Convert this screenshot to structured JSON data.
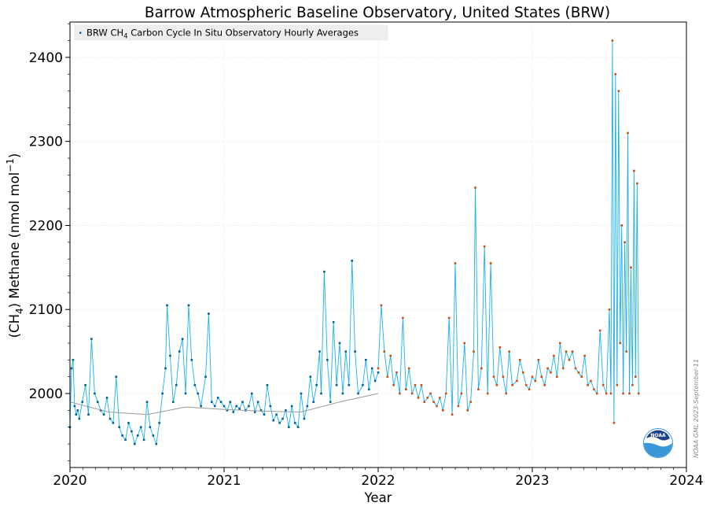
{
  "chart_data": {
    "type": "line",
    "title": "Barrow Atmospheric Baseline Observatory, United States (BRW)",
    "xlabel": "Year",
    "ylabel": "(CH4) Methane (nmol mol-1)",
    "ylabel_parts": {
      "open": "(CH",
      "sub": "4",
      "mid": ") Methane (nmol mol",
      "sup": "−1",
      "close": ")"
    },
    "xlim": [
      2020,
      2024
    ],
    "ylim": [
      1912,
      2442
    ],
    "x_ticks": [
      2020,
      2021,
      2022,
      2023,
      2024
    ],
    "x_tick_labels": [
      "2020",
      "2021",
      "2022",
      "2023",
      "2024"
    ],
    "y_ticks": [
      2000,
      2100,
      2200,
      2300,
      2400
    ],
    "y_tick_labels": [
      "2000",
      "2100",
      "2200",
      "2300",
      "2400"
    ],
    "grid": true,
    "legend_position": "top-left",
    "legend": {
      "label_prefix": "BRW CH",
      "label_sub": "4",
      "label_suffix": " Carbon Cycle In Situ Observatory Hourly Averages"
    },
    "credit": "NOAA GML 2023-September-11",
    "logo_text": "NOAA",
    "colors": {
      "line": "#1ab0ee",
      "final_points": "#00609a",
      "preliminary_points": "#c84f18",
      "trend": "#999999",
      "logo_blue": "#3a98d8"
    },
    "series": [
      {
        "name": "BRW CH4 Carbon Cycle In Situ Observatory Hourly Averages",
        "segment": "final",
        "x": [
          2020.0,
          2020.01,
          2020.02,
          2020.03,
          2020.04,
          2020.05,
          2020.06,
          2020.08,
          2020.1,
          2020.12,
          2020.14,
          2020.16,
          2020.18,
          2020.2,
          2020.22,
          2020.24,
          2020.26,
          2020.28,
          2020.3,
          2020.32,
          2020.34,
          2020.36,
          2020.38,
          2020.4,
          2020.42,
          2020.44,
          2020.46,
          2020.48,
          2020.5,
          2020.52,
          2020.54,
          2020.56,
          2020.58,
          2020.6,
          2020.62,
          2020.63,
          2020.65,
          2020.67,
          2020.69,
          2020.71,
          2020.73,
          2020.75,
          2020.77,
          2020.79,
          2020.81,
          2020.83,
          2020.85,
          2020.88,
          2020.9,
          2020.92,
          2020.94,
          2020.96,
          2020.98,
          2021.0,
          2021.02,
          2021.04,
          2021.06,
          2021.08,
          2021.1,
          2021.12,
          2021.14,
          2021.16,
          2021.18,
          2021.2,
          2021.22,
          2021.24,
          2021.26,
          2021.28,
          2021.3,
          2021.32,
          2021.34,
          2021.36,
          2021.38,
          2021.4,
          2021.42,
          2021.44,
          2021.46,
          2021.48,
          2021.5,
          2021.52,
          2021.54,
          2021.56,
          2021.58,
          2021.6,
          2021.62,
          2021.63,
          2021.65,
          2021.67,
          2021.69,
          2021.71,
          2021.73,
          2021.75,
          2021.77,
          2021.79,
          2021.81,
          2021.83,
          2021.85,
          2021.87,
          2021.9,
          2021.92,
          2021.94,
          2021.96,
          2021.98,
          2022.0
        ],
        "y": [
          1960,
          2030,
          2040,
          1985,
          1975,
          1980,
          1970,
          1990,
          2010,
          1975,
          2065,
          2000,
          1990,
          1980,
          1975,
          1995,
          1970,
          1965,
          2020,
          1960,
          1950,
          1945,
          1965,
          1955,
          1940,
          1950,
          1960,
          1945,
          1990,
          1960,
          1950,
          1940,
          1965,
          2000,
          2030,
          2105,
          2045,
          1990,
          2010,
          2050,
          2065,
          2000,
          2105,
          2040,
          2010,
          2000,
          1985,
          2020,
          2095,
          1990,
          1985,
          1995,
          1990,
          1985,
          1980,
          1990,
          1978,
          1985,
          1982,
          1990,
          1980,
          1985,
          2000,
          1978,
          1990,
          1980,
          1975,
          2010,
          1985,
          1968,
          1975,
          1965,
          1970,
          1980,
          1960,
          1985,
          1965,
          1960,
          2000,
          1970,
          1985,
          2020,
          1990,
          2010,
          2050,
          2000,
          2145,
          2040,
          1990,
          2085,
          2010,
          2060,
          2000,
          2050,
          2010,
          2158,
          2050,
          2000,
          2010,
          2040,
          2005,
          2030,
          2015,
          2025
        ]
      },
      {
        "name": "",
        "segment": "preliminary",
        "x": [
          2022.0,
          2022.02,
          2022.04,
          2022.06,
          2022.08,
          2022.1,
          2022.12,
          2022.14,
          2022.16,
          2022.18,
          2022.2,
          2022.22,
          2022.24,
          2022.26,
          2022.28,
          2022.3,
          2022.32,
          2022.34,
          2022.36,
          2022.38,
          2022.4,
          2022.42,
          2022.44,
          2022.46,
          2022.48,
          2022.5,
          2022.52,
          2022.54,
          2022.56,
          2022.58,
          2022.6,
          2022.62,
          2022.63,
          2022.65,
          2022.67,
          2022.69,
          2022.71,
          2022.73,
          2022.75,
          2022.77,
          2022.79,
          2022.81,
          2022.83,
          2022.85,
          2022.87,
          2022.9,
          2022.92,
          2022.94,
          2022.96,
          2022.98,
          2023.0,
          2023.02,
          2023.04,
          2023.06,
          2023.08,
          2023.1,
          2023.12,
          2023.14,
          2023.16,
          2023.18,
          2023.2,
          2023.22,
          2023.24,
          2023.26,
          2023.28,
          2023.3,
          2023.32,
          2023.34,
          2023.36,
          2023.38,
          2023.4,
          2023.42,
          2023.44,
          2023.46,
          2023.48,
          2023.5,
          2023.51,
          2023.52,
          2023.53,
          2023.54,
          2023.55,
          2023.56,
          2023.57,
          2023.58,
          2023.59,
          2023.6,
          2023.61,
          2023.62,
          2023.63,
          2023.64,
          2023.65,
          2023.66,
          2023.67,
          2023.68,
          2023.69
        ],
        "y": [
          2030,
          2105,
          2050,
          2020,
          2045,
          2010,
          2025,
          2000,
          2090,
          2005,
          2030,
          2000,
          2010,
          1995,
          2010,
          1990,
          1995,
          2000,
          1990,
          1985,
          1995,
          1980,
          2000,
          2090,
          1975,
          2155,
          1985,
          2000,
          2060,
          1980,
          1990,
          2050,
          2245,
          2005,
          2030,
          2175,
          2000,
          2155,
          2020,
          2010,
          2055,
          2020,
          2000,
          2050,
          2010,
          2015,
          2040,
          2025,
          2010,
          2005,
          2020,
          2015,
          2040,
          2020,
          2010,
          2030,
          2025,
          2045,
          2020,
          2060,
          2030,
          2050,
          2040,
          2050,
          2030,
          2025,
          2020,
          2045,
          2010,
          2015,
          2005,
          2000,
          2075,
          2010,
          2000,
          2100,
          2000,
          2420,
          1965,
          2380,
          2010,
          2360,
          2060,
          2200,
          2000,
          2180,
          2050,
          2310,
          2000,
          2150,
          2010,
          2265,
          2020,
          2250,
          2000
        ]
      },
      {
        "name": "",
        "segment": "trend",
        "x": [
          2020.0,
          2020.25,
          2020.5,
          2020.75,
          2021.0,
          2021.25,
          2021.5,
          2021.75,
          2022.0
        ],
        "y": [
          1990,
          1978,
          1975,
          1984,
          1981,
          1979,
          1978,
          1990,
          2000
        ]
      }
    ]
  }
}
